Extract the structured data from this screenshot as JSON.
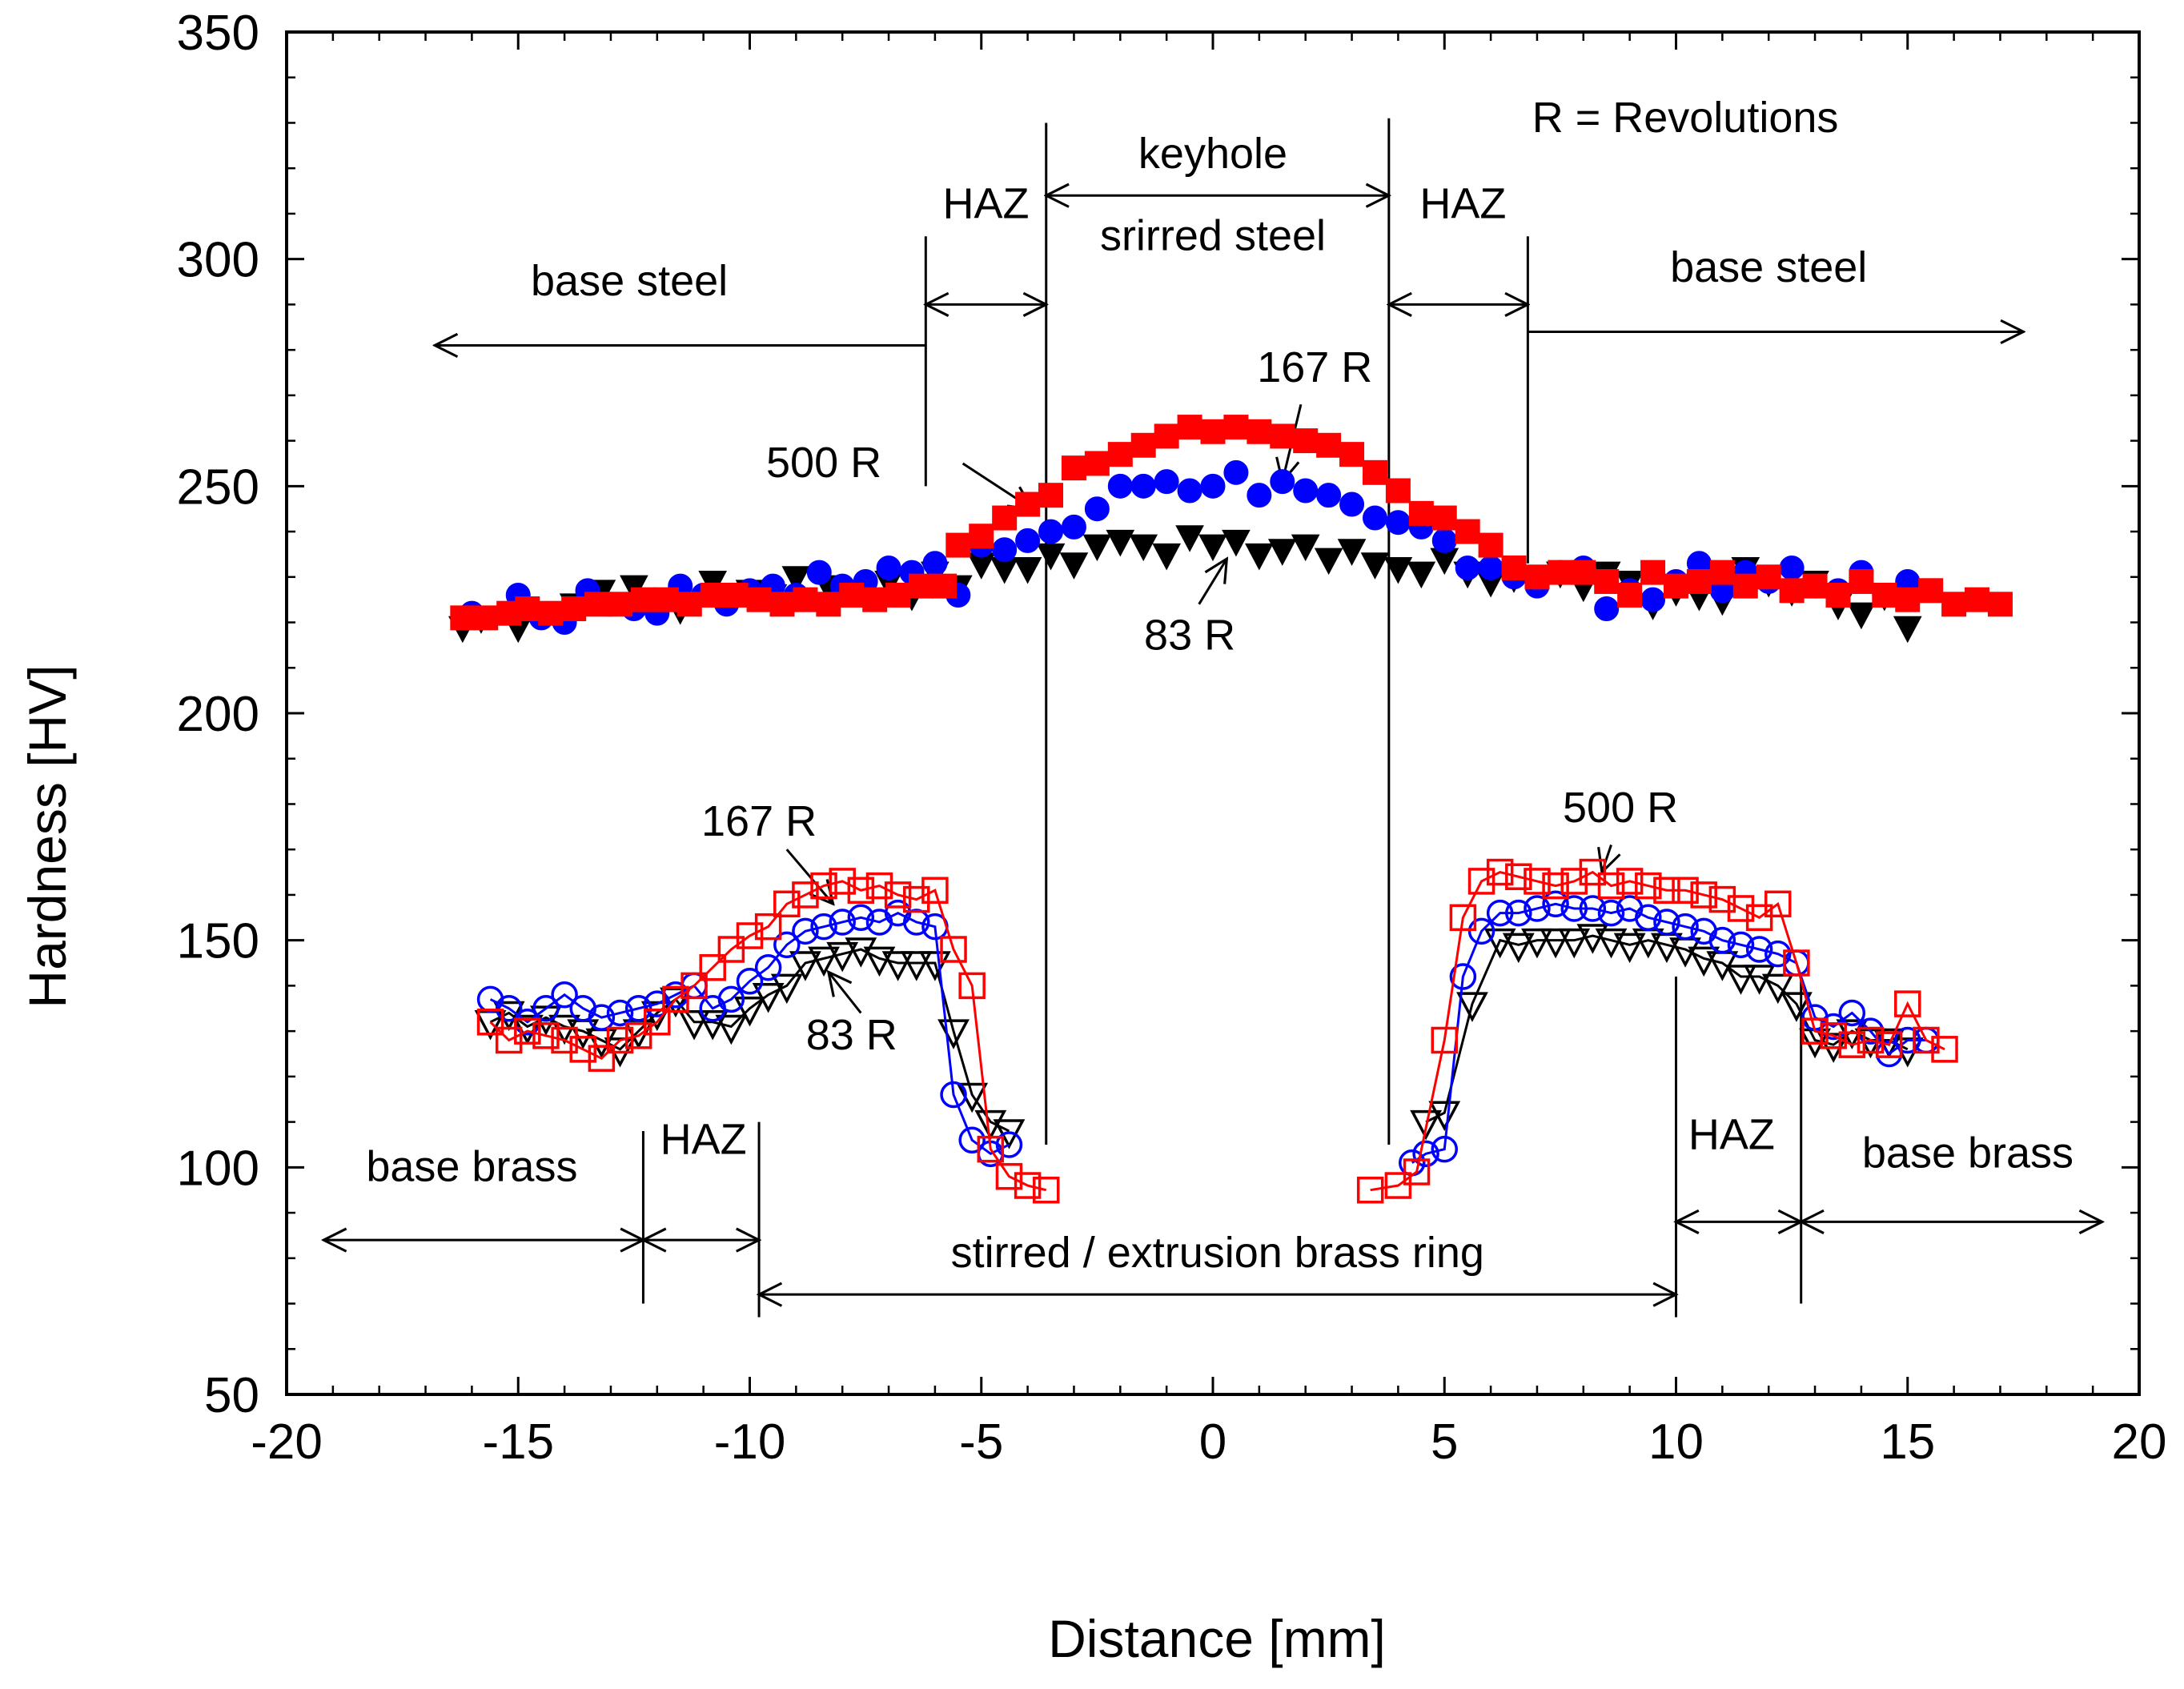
{
  "chart_data": {
    "type": "scatter",
    "title": "",
    "xlabel": "Distance [mm]",
    "ylabel": "Hardness [HV]",
    "xlim": [
      -20,
      20
    ],
    "ylim": [
      50,
      350
    ],
    "xticks": [
      -20,
      -15,
      -10,
      -5,
      0,
      5,
      10,
      15,
      20
    ],
    "yticks": [
      50,
      100,
      150,
      200,
      250,
      300,
      350
    ],
    "grid": false,
    "legend_note": "R = Revolutions",
    "series": [
      {
        "name": "83 R steel",
        "group": "steel",
        "marker": "triangle-down",
        "filled": true,
        "color": "#000000",
        "line": false,
        "x": [
          -16.2,
          -15.8,
          -15.0,
          -14.5,
          -13.8,
          -13.2,
          -12.5,
          -12.0,
          -11.5,
          -10.8,
          -10.0,
          -9.5,
          -9.0,
          -8.3,
          -7.6,
          -7.0,
          -6.5,
          -6.0,
          -5.5,
          -5.0,
          -4.5,
          -4.0,
          -3.5,
          -3.0,
          -2.5,
          -2.0,
          -1.5,
          -1.0,
          -0.5,
          0.0,
          0.5,
          1.0,
          1.5,
          2.0,
          2.5,
          3.0,
          3.5,
          4.0,
          4.5,
          5.0,
          5.5,
          6.0,
          6.5,
          7.0,
          7.5,
          8.0,
          8.5,
          9.0,
          9.5,
          10.0,
          10.5,
          11.0,
          11.5,
          12.0,
          12.5,
          13.0,
          13.5,
          14.0,
          14.5,
          15.0
        ],
        "y": [
          219,
          221,
          219,
          222,
          224,
          227,
          228,
          225,
          223,
          229,
          227,
          226,
          230,
          228,
          227,
          229,
          226,
          231,
          228,
          233,
          232,
          232,
          235,
          233,
          237,
          238,
          237,
          235,
          239,
          237,
          238,
          235,
          236,
          237,
          234,
          236,
          233,
          232,
          231,
          234,
          231,
          229,
          230,
          230,
          231,
          228,
          231,
          229,
          224,
          227,
          226,
          225,
          232,
          229,
          227,
          229,
          224,
          222,
          226,
          219
        ]
      },
      {
        "name": "167 R steel",
        "group": "steel",
        "marker": "circle",
        "filled": true,
        "color": "#0000ff",
        "line": false,
        "x": [
          -16.0,
          -15.0,
          -14.5,
          -14.0,
          -13.5,
          -13.0,
          -12.5,
          -12.0,
          -11.5,
          -11.0,
          -10.5,
          -10.0,
          -9.5,
          -9.0,
          -8.5,
          -8.0,
          -7.5,
          -7.0,
          -6.5,
          -6.0,
          -5.5,
          -5.0,
          -4.5,
          -4.0,
          -3.5,
          -3.0,
          -2.5,
          -2.0,
          -1.5,
          -1.0,
          -0.5,
          0.0,
          0.5,
          1.0,
          1.5,
          2.0,
          2.5,
          3.0,
          3.5,
          4.0,
          4.5,
          5.0,
          5.5,
          6.0,
          6.5,
          7.0,
          7.5,
          8.0,
          8.5,
          9.0,
          9.5,
          10.0,
          10.5,
          11.0,
          11.5,
          12.0,
          12.5,
          13.0,
          13.5,
          14.0,
          14.5,
          15.0
        ],
        "y": [
          222,
          226,
          221,
          220,
          227,
          224,
          223,
          222,
          228,
          226,
          224,
          227,
          228,
          226,
          231,
          228,
          229,
          232,
          231,
          233,
          226,
          237,
          236,
          238,
          240,
          241,
          245,
          250,
          250,
          251,
          249,
          250,
          253,
          248,
          251,
          249,
          248,
          246,
          243,
          242,
          241,
          238,
          232,
          232,
          230,
          228,
          231,
          232,
          223,
          227,
          225,
          229,
          233,
          227,
          231,
          229,
          232,
          228,
          227,
          231,
          226,
          229
        ]
      },
      {
        "name": "500 R steel",
        "group": "steel",
        "marker": "square",
        "filled": true,
        "color": "#ff0000",
        "line": false,
        "x": [
          -16.2,
          -15.7,
          -15.2,
          -14.8,
          -14.3,
          -13.8,
          -13.3,
          -12.8,
          -12.3,
          -11.8,
          -11.3,
          -10.8,
          -10.3,
          -9.8,
          -9.3,
          -8.8,
          -8.3,
          -7.8,
          -7.3,
          -6.8,
          -6.3,
          -5.8,
          -5.5,
          -5.0,
          -4.5,
          -4.0,
          -3.5,
          -3.0,
          -2.5,
          -2.0,
          -1.5,
          -1.0,
          -0.5,
          0.0,
          0.5,
          1.0,
          1.5,
          2.0,
          2.5,
          3.0,
          3.5,
          4.0,
          4.5,
          5.0,
          5.5,
          6.0,
          6.5,
          7.0,
          7.5,
          8.0,
          8.5,
          9.0,
          9.5,
          10.0,
          10.5,
          11.0,
          11.5,
          12.0,
          12.5,
          13.0,
          13.5,
          14.0,
          14.5,
          15.0,
          15.5,
          16.0,
          16.5,
          17.0
        ],
        "y": [
          221,
          221,
          222,
          223,
          222,
          223,
          224,
          224,
          225,
          225,
          224,
          226,
          226,
          225,
          224,
          225,
          224,
          226,
          225,
          226,
          228,
          228,
          237,
          239,
          243,
          246,
          248,
          254,
          255,
          257,
          259,
          261,
          263,
          262,
          263,
          262,
          261,
          260,
          259,
          257,
          253,
          249,
          244,
          243,
          240,
          237,
          232,
          230,
          231,
          231,
          229,
          226,
          231,
          228,
          229,
          231,
          228,
          230,
          227,
          228,
          226,
          229,
          226,
          225,
          227,
          224,
          225,
          224
        ]
      },
      {
        "name": "83 R brass left",
        "group": "brass",
        "marker": "triangle-down",
        "filled": false,
        "color": "#000000",
        "line": true,
        "x": [
          -15.6,
          -15.2,
          -14.8,
          -14.4,
          -14.0,
          -13.6,
          -13.2,
          -12.8,
          -12.4,
          -12.0,
          -11.6,
          -11.2,
          -10.8,
          -10.4,
          -10.0,
          -9.6,
          -9.2,
          -8.8,
          -8.4,
          -8.0,
          -7.6,
          -7.2,
          -6.8,
          -6.4,
          -6.0,
          -5.6,
          -5.2,
          -4.8,
          -4.4
        ],
        "y": [
          132,
          134,
          131,
          133,
          131,
          130,
          128,
          126,
          130,
          134,
          137,
          132,
          132,
          131,
          135,
          138,
          140,
          145,
          146,
          147,
          148,
          146,
          145,
          145,
          145,
          130,
          116,
          110,
          108
        ]
      },
      {
        "name": "167 R brass left",
        "group": "brass",
        "marker": "circle",
        "filled": false,
        "color": "#0000ff",
        "line": true,
        "x": [
          -15.6,
          -15.2,
          -14.8,
          -14.4,
          -14.0,
          -13.6,
          -13.2,
          -12.8,
          -12.4,
          -12.0,
          -11.6,
          -11.2,
          -10.8,
          -10.4,
          -10.0,
          -9.6,
          -9.2,
          -8.8,
          -8.4,
          -8.0,
          -7.6,
          -7.2,
          -6.8,
          -6.4,
          -6.0,
          -5.6,
          -5.2,
          -4.8,
          -4.4
        ],
        "y": [
          137,
          135,
          132,
          135,
          138,
          135,
          133,
          134,
          135,
          136,
          138,
          140,
          135,
          137,
          141,
          144,
          149,
          152,
          153,
          154,
          155,
          154,
          156,
          154,
          153,
          116,
          106,
          103,
          105
        ]
      },
      {
        "name": "500 R brass left",
        "group": "brass",
        "marker": "square",
        "filled": false,
        "color": "#ff0000",
        "line": true,
        "x": [
          -15.6,
          -15.2,
          -14.8,
          -14.4,
          -14.0,
          -13.6,
          -13.2,
          -12.8,
          -12.4,
          -12.0,
          -11.6,
          -11.2,
          -10.8,
          -10.4,
          -10.0,
          -9.6,
          -9.2,
          -8.8,
          -8.4,
          -8.0,
          -7.6,
          -7.2,
          -6.8,
          -6.4,
          -6.0,
          -5.6,
          -5.2,
          -4.8,
          -4.4,
          -4.0,
          -3.6
        ],
        "y": [
          132,
          128,
          130,
          129,
          128,
          126,
          124,
          128,
          129,
          132,
          137,
          140,
          144,
          148,
          151,
          153,
          158,
          160,
          162,
          163,
          161,
          162,
          160,
          159,
          161,
          148,
          140,
          104,
          98,
          96,
          95
        ]
      },
      {
        "name": "83 R brass right",
        "group": "brass",
        "marker": "triangle-down",
        "filled": false,
        "color": "#000000",
        "line": true,
        "x": [
          4.6,
          5.0,
          5.6,
          6.2,
          6.6,
          7.0,
          7.4,
          7.8,
          8.2,
          8.6,
          9.0,
          9.4,
          9.8,
          10.2,
          10.6,
          11.0,
          11.4,
          11.8,
          12.2,
          12.6,
          13.0,
          13.4,
          13.8,
          14.2,
          14.6,
          15.0
        ],
        "y": [
          110,
          112,
          136,
          150,
          149,
          150,
          150,
          150,
          151,
          150,
          149,
          150,
          149,
          148,
          146,
          145,
          142,
          142,
          140,
          136,
          128,
          127,
          130,
          128,
          128,
          126
        ]
      },
      {
        "name": "167 R brass right",
        "group": "brass",
        "marker": "circle",
        "filled": false,
        "color": "#0000ff",
        "line": true,
        "x": [
          4.3,
          4.6,
          5.0,
          5.4,
          5.8,
          6.2,
          6.6,
          7.0,
          7.4,
          7.8,
          8.2,
          8.6,
          9.0,
          9.4,
          9.8,
          10.2,
          10.6,
          11.0,
          11.4,
          11.8,
          12.2,
          12.6,
          13.0,
          13.4,
          13.8,
          14.2,
          14.6,
          15.0,
          15.4
        ],
        "y": [
          101,
          103,
          104,
          142,
          152,
          156,
          156,
          157,
          158,
          157,
          157,
          156,
          157,
          155,
          154,
          153,
          152,
          150,
          149,
          148,
          147,
          145,
          133,
          131,
          134,
          130,
          125,
          128,
          128
        ]
      },
      {
        "name": "500 R brass right",
        "group": "brass",
        "marker": "square",
        "filled": false,
        "color": "#ff0000",
        "line": true,
        "x": [
          3.4,
          4.0,
          4.4,
          5.0,
          5.4,
          5.8,
          6.2,
          6.6,
          7.0,
          7.4,
          7.8,
          8.2,
          8.6,
          9.0,
          9.4,
          9.8,
          10.2,
          10.6,
          11.0,
          11.4,
          11.8,
          12.2,
          12.6,
          13.0,
          13.4,
          13.8,
          14.2,
          14.6,
          15.0,
          15.4,
          15.8
        ],
        "y": [
          95,
          96,
          99,
          128,
          155,
          163,
          165,
          164,
          163,
          162,
          163,
          165,
          162,
          163,
          162,
          161,
          161,
          160,
          159,
          157,
          155,
          158,
          145,
          130,
          129,
          127,
          128,
          127,
          136,
          128,
          126
        ]
      }
    ],
    "annotations": [
      {
        "text": "R = Revolutions",
        "x": 10.2,
        "y": 328
      },
      {
        "text": "keyhole",
        "x": 0,
        "y": 320
      },
      {
        "text": "srirred steel",
        "x": 0,
        "y": 302
      },
      {
        "text": "HAZ",
        "x": -4.9,
        "y": 309
      },
      {
        "text": "HAZ",
        "x": 5.4,
        "y": 309
      },
      {
        "text": "base steel",
        "x": -12.6,
        "y": 292
      },
      {
        "text": "base steel",
        "x": 12.0,
        "y": 295
      },
      {
        "text": "167 R",
        "x": 2.2,
        "y": 273
      },
      {
        "text": "500 R",
        "x": -8.4,
        "y": 252
      },
      {
        "text": "83 R",
        "x": -0.5,
        "y": 214
      },
      {
        "text": "167 R",
        "x": -9.8,
        "y": 173
      },
      {
        "text": "500 R",
        "x": 8.8,
        "y": 176
      },
      {
        "text": "83 R",
        "x": -7.8,
        "y": 126
      },
      {
        "text": "HAZ",
        "x": -11.0,
        "y": 103
      },
      {
        "text": "base brass",
        "x": -16.0,
        "y": 97
      },
      {
        "text": "HAZ",
        "x": 11.2,
        "y": 104
      },
      {
        "text": "base brass",
        "x": 16.3,
        "y": 100
      },
      {
        "text": "stirred / extrusion brass ring",
        "x": 0.1,
        "y": 78
      }
    ],
    "zone_boundaries_mm": [
      -12.3,
      -9.8,
      -6.2,
      -3.6,
      3.8,
      6.8,
      10.0,
      12.7
    ],
    "arrows": [
      {
        "x1": -6.2,
        "y1": 281,
        "x2": -16.8,
        "y2": 281
      },
      {
        "x1": -6.2,
        "y1": 290,
        "x2": -3.6,
        "y2": 290
      },
      {
        "x1": -3.6,
        "y1": 314,
        "x2": 3.8,
        "y2": 314
      },
      {
        "x1": 3.8,
        "y1": 290,
        "x2": 6.8,
        "y2": 290
      },
      {
        "x1": 6.8,
        "y1": 284,
        "x2": 17.5,
        "y2": 284
      },
      {
        "x1": -19.2,
        "y1": 84,
        "x2": -12.3,
        "y2": 84
      },
      {
        "x1": -12.3,
        "y1": 84,
        "x2": -9.8,
        "y2": 84
      },
      {
        "x1": -9.8,
        "y1": 72,
        "x2": 10.0,
        "y2": 72
      },
      {
        "x1": 10.0,
        "y1": 88,
        "x2": 12.7,
        "y2": 88
      },
      {
        "x1": 12.7,
        "y1": 88,
        "x2": 19.2,
        "y2": 88
      }
    ],
    "pointers": [
      {
        "x1": 1.9,
        "y1": 268,
        "x2": 1.5,
        "y2": 251
      },
      {
        "x1": -5.4,
        "y1": 255,
        "x2": -3.9,
        "y2": 245
      },
      {
        "x1": -0.3,
        "y1": 224,
        "x2": 0.3,
        "y2": 234
      },
      {
        "x1": -9.2,
        "y1": 170,
        "x2": -8.2,
        "y2": 158
      },
      {
        "x1": 8.6,
        "y1": 171,
        "x2": 8.4,
        "y2": 165
      },
      {
        "x1": -7.6,
        "y1": 134,
        "x2": -8.3,
        "y2": 143
      }
    ]
  }
}
